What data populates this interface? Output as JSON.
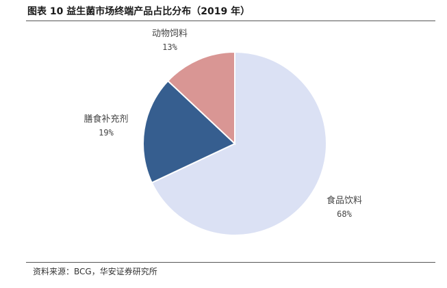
{
  "header": {
    "title": "图表 10 益生菌市场终端产品占比分布（2019 年）"
  },
  "footer": {
    "source": "资料来源：BCG，华安证券研究所"
  },
  "chart_data": {
    "type": "pie",
    "title": "图表 10 益生菌市场终端产品占比分布（2019 年）",
    "slices": [
      {
        "label": "食品饮料",
        "value": 68,
        "value_text": "68%",
        "color": "#dbe1f4"
      },
      {
        "label": "膳食补充剂",
        "value": 19,
        "value_text": "19%",
        "color": "#365e8f"
      },
      {
        "label": "动物饲料",
        "value": 13,
        "value_text": "13%",
        "color": "#d99694"
      }
    ],
    "start": "12 o'clock",
    "direction": "clockwise",
    "legend": "none"
  }
}
